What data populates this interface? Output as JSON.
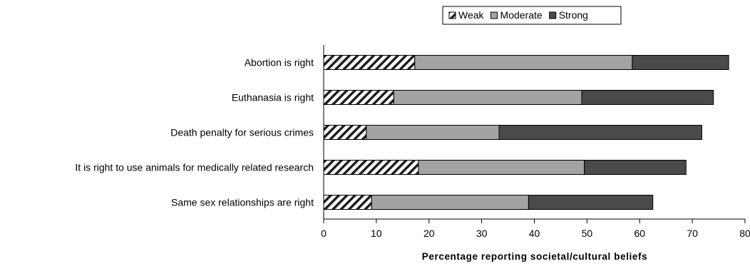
{
  "chart_data": {
    "type": "bar",
    "orientation": "horizontal",
    "stacked": true,
    "title": "",
    "xlabel": "Percentage reporting societal/cultural beliefs",
    "ylabel": "",
    "xlim": [
      0,
      80
    ],
    "x_ticks": [
      0,
      10,
      20,
      30,
      40,
      50,
      60,
      70,
      80
    ],
    "grid": false,
    "legend_position": "top",
    "categories": [
      "Abortion is right",
      "Euthanasia is right",
      "Death penalty for serious crimes",
      "It is right to use animals for medically related research",
      "Same sex relationships are right"
    ],
    "series": [
      {
        "name": "Weak",
        "values": [
          17.3,
          13.3,
          8.1,
          18.0,
          9.1
        ],
        "pattern": "hatch",
        "color": "#ffffff"
      },
      {
        "name": "Moderate",
        "values": [
          41.3,
          35.7,
          25.2,
          31.5,
          29.8
        ],
        "pattern": "solid",
        "color": "#a3a3a3"
      },
      {
        "name": "Strong",
        "values": [
          18.3,
          25.0,
          38.5,
          19.3,
          23.6
        ],
        "pattern": "solid",
        "color": "#4a4a4a"
      }
    ]
  }
}
